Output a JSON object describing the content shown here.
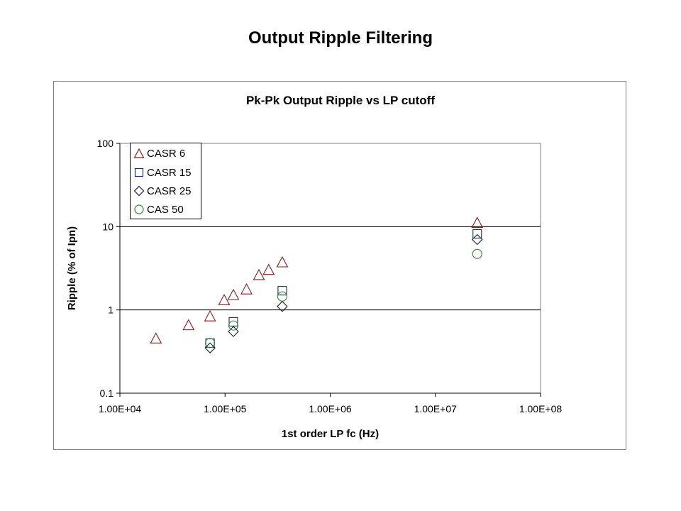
{
  "page": {
    "title": "Output Ripple Filtering"
  },
  "colors": {
    "CASR 6": "#8b1a1a",
    "CASR 15": "#1f2a7a",
    "CASR 25": "#1a1a40",
    "CAS 50": "#2e8b2e"
  },
  "chart_data": {
    "type": "scatter",
    "title": "Pk-Pk Output Ripple vs LP cutoff",
    "xlabel": "1st order LP fc (Hz)",
    "ylabel": "Ripple (% of Ipn)",
    "x_scale": "log",
    "y_scale": "log",
    "xlim": [
      10000,
      100000000
    ],
    "ylim": [
      0.1,
      100
    ],
    "x_ticks": [
      "1.00E+04",
      "1.00E+05",
      "1.00E+06",
      "1.00E+07",
      "1.00E+08"
    ],
    "y_ticks": [
      "0.1",
      "1",
      "10",
      "100"
    ],
    "grid": "horizontal major",
    "legend_position": "top-left",
    "series": [
      {
        "name": "CASR 6",
        "marker": "triangle",
        "points": [
          [
            22000,
            0.45
          ],
          [
            45000,
            0.65
          ],
          [
            72000,
            0.83
          ],
          [
            98000,
            1.3
          ],
          [
            120000,
            1.5
          ],
          [
            160000,
            1.75
          ],
          [
            210000,
            2.6
          ],
          [
            260000,
            3.0
          ],
          [
            350000,
            3.7
          ],
          [
            25000000,
            11.0
          ]
        ]
      },
      {
        "name": "CASR 15",
        "marker": "square",
        "points": [
          [
            72000,
            0.4
          ],
          [
            120000,
            0.72
          ],
          [
            350000,
            1.7
          ],
          [
            25000000,
            8.2
          ]
        ]
      },
      {
        "name": "CASR 25",
        "marker": "diamond",
        "points": [
          [
            72000,
            0.35
          ],
          [
            120000,
            0.55
          ],
          [
            350000,
            1.1
          ],
          [
            25000000,
            7.0
          ]
        ]
      },
      {
        "name": "CAS 50",
        "marker": "circle",
        "points": [
          [
            72000,
            0.4
          ],
          [
            120000,
            0.65
          ],
          [
            350000,
            1.45
          ],
          [
            25000000,
            4.7
          ]
        ]
      }
    ]
  }
}
